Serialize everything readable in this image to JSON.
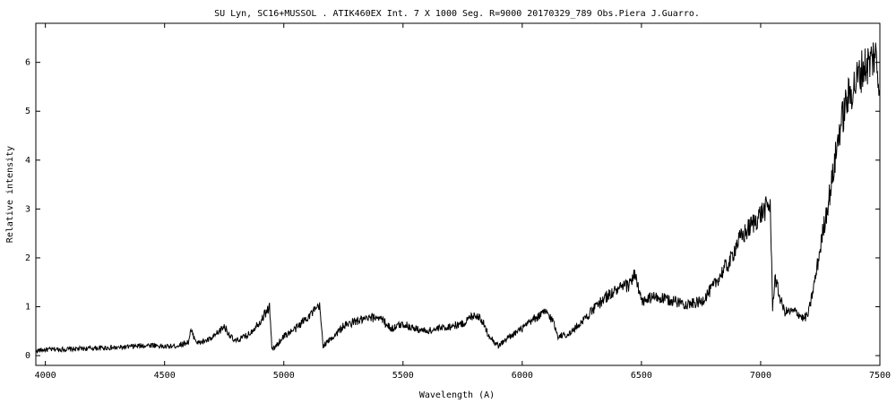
{
  "chart_data": {
    "type": "line",
    "title": "SU Lyn,  SC16+MUSSOL . ATIK460EX  Int. 7 X 1000 Seg.  R=9000   20170329_789  Obs.Piera  J.Guarro.",
    "xlabel": "Wavelength (A)",
    "ylabel": "Relative intensity",
    "xlim": [
      3960,
      7500
    ],
    "ylim": [
      -0.2,
      6.8
    ],
    "x_ticks": [
      4000,
      4500,
      5000,
      5500,
      6000,
      6500,
      7000,
      7500
    ],
    "y_ticks": [
      0,
      1,
      2,
      3,
      4,
      5,
      6
    ],
    "grid": false,
    "line_color": "#000000",
    "series": [
      {
        "x": [
          3960,
          4000,
          4050,
          4100,
          4150,
          4200,
          4250,
          4300,
          4350,
          4400,
          4450,
          4500,
          4550,
          4600,
          4610,
          4640,
          4700,
          4750,
          4790,
          4800,
          4850,
          4900,
          4940,
          4950,
          4960,
          5000,
          5050,
          5100,
          5150,
          5165,
          5200,
          5250,
          5300,
          5350,
          5400,
          5450,
          5500,
          5550,
          5600,
          5650,
          5700,
          5750,
          5800,
          5830,
          5850,
          5880,
          5900,
          5950,
          6000,
          6050,
          6100,
          6130,
          6150,
          6200,
          6250,
          6300,
          6350,
          6400,
          6450,
          6470,
          6500,
          6550,
          6600,
          6650,
          6700,
          6750,
          6800,
          6850,
          6870,
          6900,
          6950,
          7000,
          7040,
          7050,
          7060,
          7080,
          7100,
          7150,
          7180,
          7200,
          7230,
          7260,
          7300,
          7330,
          7360,
          7400,
          7430,
          7460,
          7480,
          7500
        ],
        "y": [
          0.1,
          0.12,
          0.13,
          0.13,
          0.14,
          0.15,
          0.16,
          0.16,
          0.18,
          0.2,
          0.22,
          0.18,
          0.2,
          0.28,
          0.5,
          0.25,
          0.35,
          0.6,
          0.3,
          0.3,
          0.42,
          0.7,
          1.0,
          0.15,
          0.15,
          0.4,
          0.55,
          0.8,
          1.0,
          0.2,
          0.35,
          0.6,
          0.7,
          0.75,
          0.8,
          0.55,
          0.65,
          0.55,
          0.5,
          0.55,
          0.6,
          0.65,
          0.85,
          0.75,
          0.5,
          0.3,
          0.2,
          0.4,
          0.55,
          0.75,
          0.9,
          0.7,
          0.4,
          0.45,
          0.7,
          0.95,
          1.2,
          1.35,
          1.45,
          1.7,
          1.1,
          1.2,
          1.15,
          1.1,
          1.05,
          1.1,
          1.4,
          1.8,
          1.9,
          2.3,
          2.6,
          2.9,
          3.1,
          1.0,
          1.6,
          1.2,
          0.9,
          0.9,
          0.75,
          0.85,
          1.6,
          2.5,
          3.6,
          4.6,
          5.2,
          5.6,
          5.9,
          6.0,
          6.2,
          5.4
        ]
      }
    ]
  }
}
